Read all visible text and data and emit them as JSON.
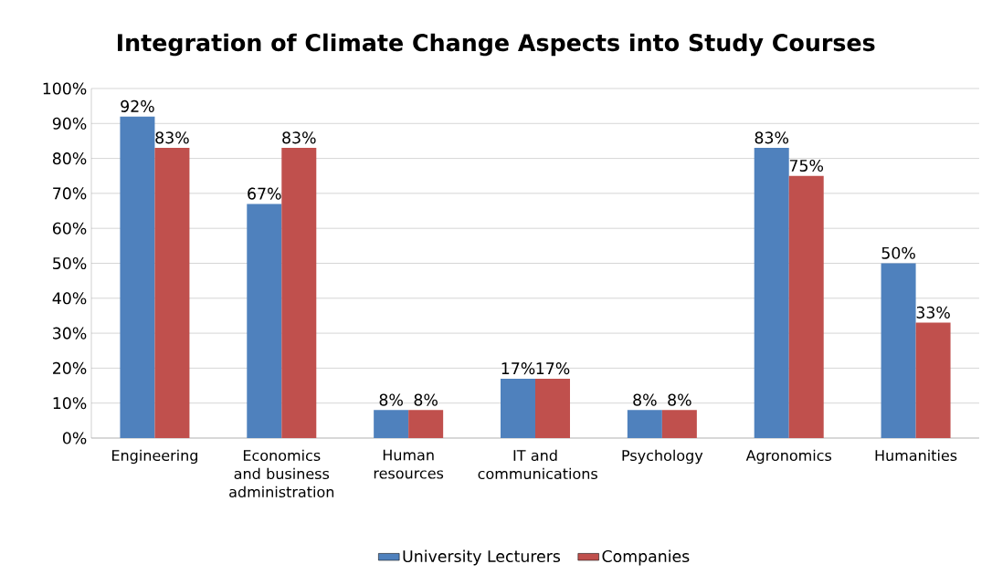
{
  "chart_data": {
    "type": "bar",
    "title": "Integration of Climate Change Aspects into Study Courses",
    "categories": [
      "Engineering",
      "Economics and business administration",
      "Human resources",
      "IT and communications",
      "Psychology",
      "Agronomics",
      "Humanities"
    ],
    "series": [
      {
        "name": "University Lecturers",
        "color": "#4f81bd",
        "values": [
          92,
          67,
          8,
          17,
          8,
          83,
          50
        ],
        "value_labels": [
          "92%",
          "67%",
          "8%",
          "17%",
          "8%",
          "83%",
          "50%"
        ]
      },
      {
        "name": "Companies",
        "color": "#c0504d",
        "values": [
          83,
          83,
          8,
          17,
          8,
          75,
          33
        ],
        "value_labels": [
          "83%",
          "83%",
          "8%",
          "17%",
          "8%",
          "75%",
          "33%"
        ]
      }
    ],
    "ylim": [
      0,
      100
    ],
    "yticks": [
      {
        "value": 0,
        "label": "0%"
      },
      {
        "value": 10,
        "label": "10%"
      },
      {
        "value": 20,
        "label": "20%"
      },
      {
        "value": 30,
        "label": "30%"
      },
      {
        "value": 40,
        "label": "40%"
      },
      {
        "value": 50,
        "label": "50%"
      },
      {
        "value": 60,
        "label": "60%"
      },
      {
        "value": 70,
        "label": "70%"
      },
      {
        "value": 80,
        "label": "80%"
      },
      {
        "value": 90,
        "label": "90%"
      },
      {
        "value": 100,
        "label": "100%"
      }
    ],
    "grid": "y",
    "legend": "bottom"
  }
}
